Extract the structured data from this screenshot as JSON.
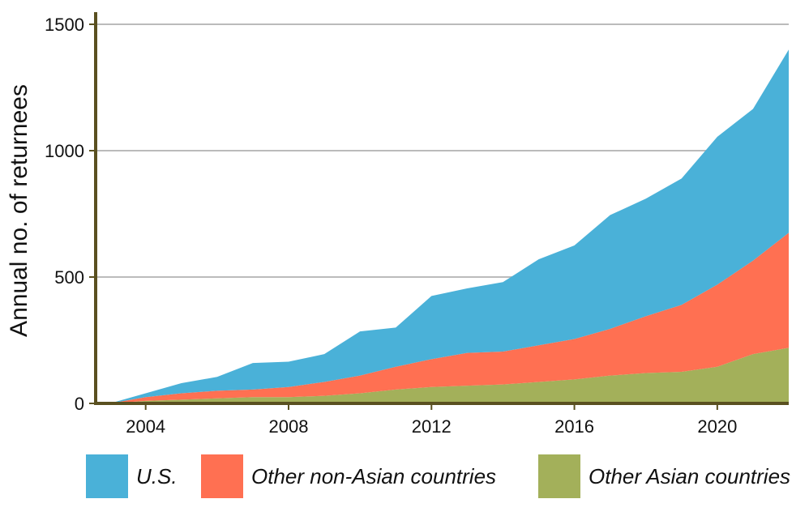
{
  "chart_data": {
    "type": "area",
    "stacked": true,
    "title": "",
    "xlabel": "",
    "ylabel": "Annual no. of returnees",
    "x": [
      2003,
      2004,
      2005,
      2006,
      2007,
      2008,
      2009,
      2010,
      2011,
      2012,
      2013,
      2014,
      2015,
      2016,
      2017,
      2018,
      2019,
      2020,
      2021,
      2022
    ],
    "xlim": [
      2002.6,
      2022
    ],
    "ylim": [
      0,
      1500
    ],
    "x_ticks": [
      2004,
      2008,
      2012,
      2016,
      2020
    ],
    "y_ticks": [
      0,
      500,
      1000,
      1500
    ],
    "grid": "horizontal",
    "legend_position": "bottom",
    "series": [
      {
        "name": "Other Asian countries",
        "color": "#a3b05a",
        "values": [
          0,
          10,
          15,
          20,
          25,
          25,
          30,
          40,
          55,
          65,
          70,
          75,
          85,
          95,
          110,
          120,
          125,
          145,
          195,
          220
        ]
      },
      {
        "name": "Other non-Asian countries",
        "color": "#ff7052",
        "values": [
          0,
          15,
          25,
          30,
          30,
          40,
          55,
          70,
          90,
          110,
          130,
          130,
          145,
          160,
          185,
          225,
          265,
          325,
          370,
          455
        ]
      },
      {
        "name": "U.S.",
        "color": "#4ab1d8",
        "values": [
          0,
          15,
          40,
          55,
          105,
          100,
          110,
          175,
          155,
          250,
          255,
          275,
          340,
          370,
          450,
          465,
          500,
          585,
          600,
          725
        ]
      }
    ],
    "legend_order": [
      "U.S.",
      "Other non-Asian countries",
      "Other Asian countries"
    ],
    "axis_color": "#5a5020",
    "grid_color": "#bbbbbb"
  }
}
